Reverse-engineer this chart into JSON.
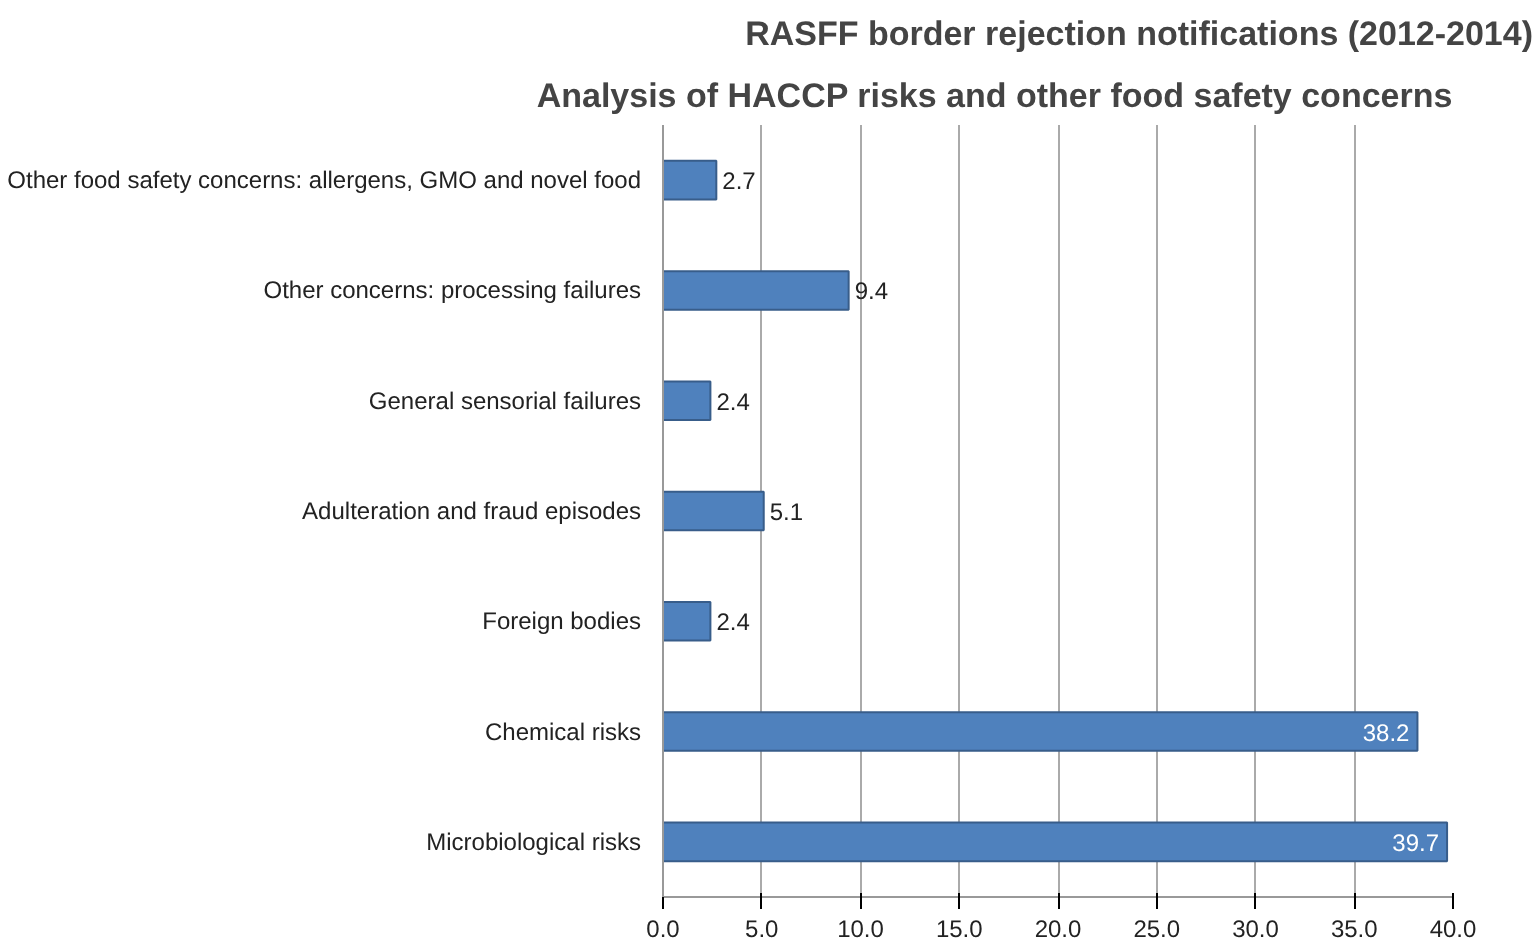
{
  "chart_data": {
    "type": "bar",
    "orientation": "horizontal",
    "title": "RASFF border rejection notifications (2012-2014)",
    "subtitle": "Analysis of HACCP risks and other food safety concerns",
    "categories": [
      "Other food safety concerns: allergens, GMO and novel food",
      "Other concerns: processing failures",
      "General sensorial failures",
      "Adulteration and fraud episodes",
      "Foreign bodies",
      "Chemical risks",
      "Microbiological risks"
    ],
    "values": [
      2.7,
      9.4,
      2.4,
      5.1,
      2.4,
      38.2,
      39.7
    ],
    "color": "#4f81bd",
    "xlim": [
      0,
      40
    ],
    "xticks": [
      {
        "value": 0,
        "label": "0.0"
      },
      {
        "value": 5,
        "label": "5.0"
      },
      {
        "value": 10,
        "label": "10.0"
      },
      {
        "value": 15,
        "label": "15.0"
      },
      {
        "value": 20,
        "label": "20.0"
      },
      {
        "value": 25,
        "label": "25.0"
      },
      {
        "value": 30,
        "label": "30.0"
      },
      {
        "value": 35,
        "label": "35.0"
      },
      {
        "value": 40,
        "label": "40.0"
      }
    ],
    "grid": "x",
    "data_labels": true
  }
}
